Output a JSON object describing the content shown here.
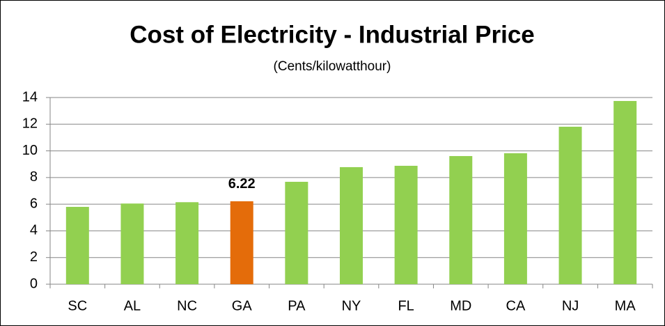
{
  "chart_data": {
    "type": "bar",
    "title": "Cost of Electricity - Industrial Price",
    "subtitle": "(Cents/kilowatthour)",
    "categories": [
      "SC",
      "AL",
      "NC",
      "GA",
      "PA",
      "NY",
      "FL",
      "MD",
      "CA",
      "NJ",
      "MA"
    ],
    "values": [
      5.8,
      6.05,
      6.15,
      6.22,
      7.68,
      8.78,
      8.88,
      9.61,
      9.82,
      11.81,
      13.74
    ],
    "value_labels": [
      null,
      null,
      null,
      "6.22",
      null,
      null,
      null,
      null,
      null,
      null,
      null
    ],
    "colors": [
      "#92d050",
      "#92d050",
      "#92d050",
      "#e46c0a",
      "#92d050",
      "#92d050",
      "#92d050",
      "#92d050",
      "#92d050",
      "#92d050",
      "#92d050"
    ],
    "ylim": [
      0,
      14
    ],
    "yticks": [
      0,
      2,
      4,
      6,
      8,
      10,
      12,
      14
    ],
    "grid": true
  }
}
